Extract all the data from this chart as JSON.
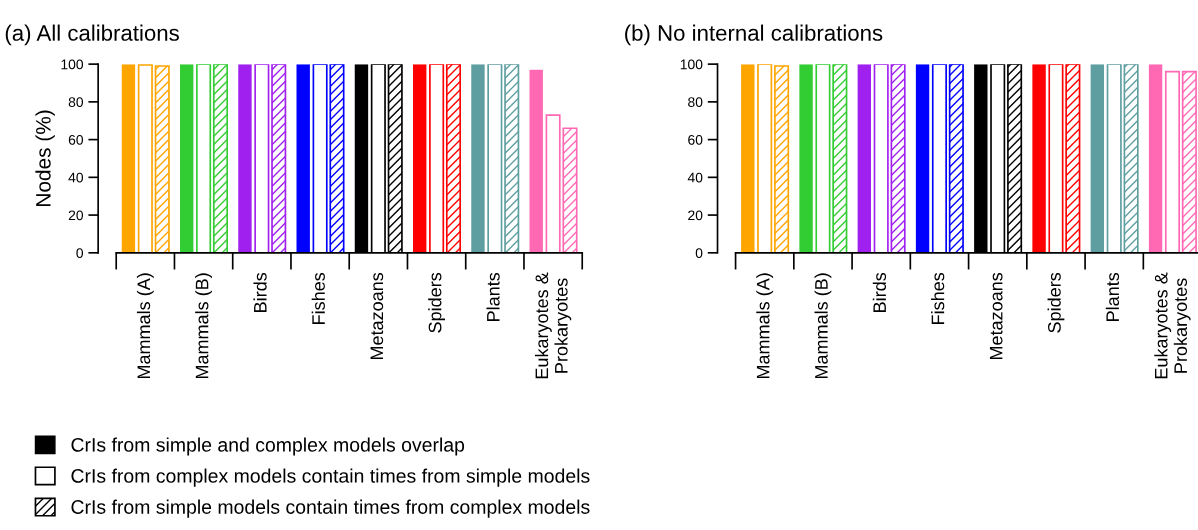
{
  "chart_data": [
    {
      "type": "bar",
      "title": "(a) All calibrations",
      "ylabel": "Nodes (%)",
      "categories": [
        "Mammals (A)",
        "Mammals (B)",
        "Birds",
        "Fishes",
        "Metazoans",
        "Spiders",
        "Plants",
        "Eukaryotes &\nProkaryotes"
      ],
      "ylim": [
        0,
        100
      ],
      "yticks": [
        0,
        20,
        40,
        60,
        80,
        100
      ],
      "grid": false,
      "legend": "bottom",
      "series": [
        {
          "name": "CrIs from simple and complex models overlap",
          "color": "#000000",
          "colors": [
            "#ffa500",
            "#32cd32",
            "#a020f0",
            "#0000ff",
            "#000000",
            "#ff0000",
            "#5f9ea0",
            "#ff69b4"
          ],
          "values": [
            100,
            100,
            100,
            100,
            100,
            100,
            100,
            97
          ]
        },
        {
          "name": "CrIs from complex models contain times from simple models",
          "color": "#000000",
          "colors": [
            "#ffa500",
            "#32cd32",
            "#a020f0",
            "#0000ff",
            "#000000",
            "#ff0000",
            "#5f9ea0",
            "#ff69b4"
          ],
          "values": [
            99.6,
            100,
            100,
            100,
            100,
            100,
            100,
            73
          ]
        },
        {
          "name": "CrIs from simple models contain times from complex models",
          "color": "#000000",
          "colors": [
            "#ffa500",
            "#32cd32",
            "#a020f0",
            "#0000ff",
            "#000000",
            "#ff0000",
            "#5f9ea0",
            "#ff69b4"
          ],
          "values": [
            99,
            100,
            100,
            100,
            100,
            100,
            100,
            66
          ]
        }
      ]
    },
    {
      "type": "bar",
      "title": "(b) No internal calibrations",
      "categories": [
        "Mammals (A)",
        "Mammals (B)",
        "Birds",
        "Fishes",
        "Metazoans",
        "Spiders",
        "Plants",
        "Eukaryotes &\nProkaryotes"
      ],
      "ylim": [
        0,
        100
      ],
      "yticks": [
        0,
        20,
        40,
        60,
        80,
        100
      ],
      "grid": false,
      "series": [
        {
          "colors": [
            "#ffa500",
            "#32cd32",
            "#a020f0",
            "#0000ff",
            "#000000",
            "#ff0000",
            "#5f9ea0",
            "#ff69b4"
          ],
          "values": [
            100,
            100,
            100,
            100,
            100,
            100,
            100,
            100
          ]
        },
        {
          "colors": [
            "#ffa500",
            "#32cd32",
            "#a020f0",
            "#0000ff",
            "#000000",
            "#ff0000",
            "#5f9ea0",
            "#ff69b4"
          ],
          "values": [
            100,
            100,
            100,
            100,
            100,
            100,
            100,
            96
          ]
        },
        {
          "colors": [
            "#ffa500",
            "#32cd32",
            "#a020f0",
            "#0000ff",
            "#000000",
            "#ff0000",
            "#5f9ea0",
            "#ff69b4"
          ],
          "values": [
            99,
            100,
            100,
            100,
            100,
            100,
            100,
            96
          ]
        }
      ]
    }
  ]
}
